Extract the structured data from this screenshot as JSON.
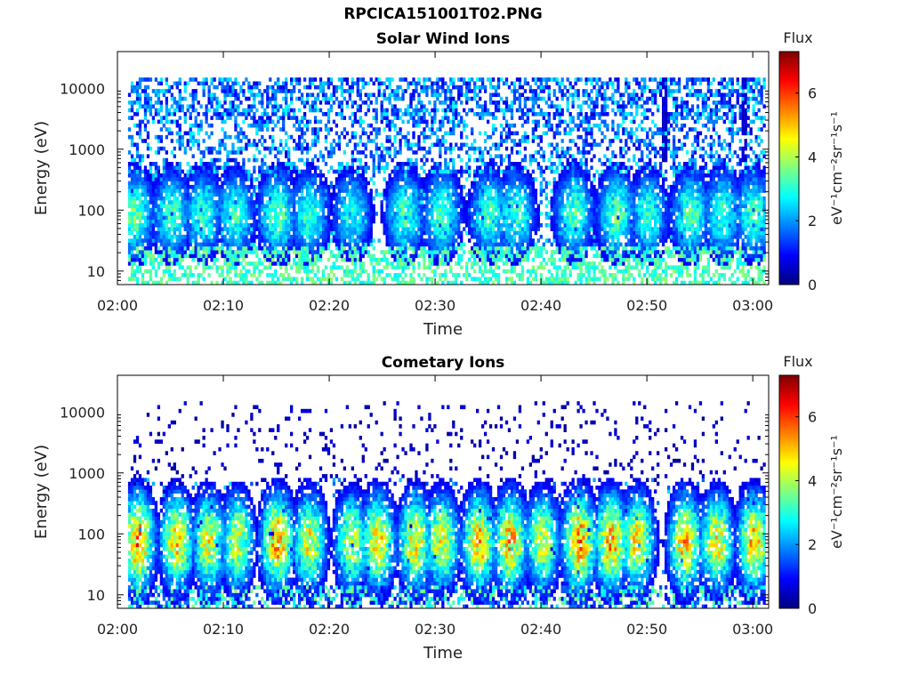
{
  "figure": {
    "title": "RPCICA151001T02.PNG"
  },
  "colors": {
    "jet_stops": [
      "#00007f",
      "#0000ff",
      "#007fff",
      "#00ffff",
      "#7fff7f",
      "#ffff00",
      "#ff7f00",
      "#ff0000",
      "#7f0000"
    ],
    "axis": "#000000",
    "background": "#ffffff"
  },
  "chart_data": [
    {
      "type": "heatmap",
      "title": "Solar Wind Ions",
      "xlabel": "Time",
      "ylabel": "Energy (eV)",
      "x_ticks": [
        "02:00",
        "02:10",
        "02:20",
        "02:30",
        "02:40",
        "02:50",
        "03:00"
      ],
      "x_tick_minutes": [
        0,
        10,
        20,
        30,
        40,
        50,
        60
      ],
      "xlim_minutes": [
        0,
        61.5
      ],
      "y_scale": "log",
      "y_ticks": [
        "10",
        "100",
        "1000",
        "10000"
      ],
      "y_tick_values": [
        10,
        100,
        1000,
        10000
      ],
      "ylim": [
        6,
        40000
      ],
      "colorbar": {
        "label": "Flux",
        "unit": "eV⁻¹cm⁻²sr⁻¹s⁻¹",
        "ticks": [
          "0",
          "2",
          "4",
          "6"
        ],
        "tick_values": [
          0,
          2,
          4,
          6
        ],
        "range": [
          0,
          7.3
        ]
      },
      "burst_centers_minutes": [
        1.5,
        5,
        8,
        11,
        15,
        18,
        22,
        27,
        30.5,
        35,
        37.5,
        43,
        47,
        50,
        54,
        57,
        60
      ],
      "burst_peak_flux": [
        3.6,
        3.4,
        3.2,
        3.3,
        3.6,
        3.3,
        3.0,
        3.4,
        3.5,
        3.4,
        3.3,
        3.5,
        3.6,
        3.2,
        3.5,
        3.3,
        3.4
      ],
      "background_flux": 1.4,
      "vertical_streak_minutes": [
        51.5,
        59
      ]
    },
    {
      "type": "heatmap",
      "title": "Cometary Ions",
      "xlabel": "Time",
      "ylabel": "Energy (eV)",
      "x_ticks": [
        "02:00",
        "02:10",
        "02:20",
        "02:30",
        "02:40",
        "02:50",
        "03:00"
      ],
      "x_tick_minutes": [
        0,
        10,
        20,
        30,
        40,
        50,
        60
      ],
      "xlim_minutes": [
        0,
        61.5
      ],
      "y_scale": "log",
      "y_ticks": [
        "10",
        "100",
        "1000",
        "10000"
      ],
      "y_tick_values": [
        10,
        100,
        1000,
        10000
      ],
      "ylim": [
        6,
        40000
      ],
      "colorbar": {
        "label": "Flux",
        "unit": "eV⁻¹cm⁻²sr⁻¹s⁻¹",
        "ticks": [
          "0",
          "2",
          "4",
          "6"
        ],
        "tick_values": [
          0,
          2,
          4,
          6
        ],
        "range": [
          0,
          7.3
        ]
      },
      "burst_centers_minutes": [
        1.8,
        5.5,
        8.5,
        11.2,
        15,
        18,
        22,
        24.5,
        28,
        30.5,
        34,
        37,
        40,
        43.5,
        46.5,
        49,
        53.5,
        56.5,
        60
      ],
      "burst_peak_flux": [
        6.0,
        5.3,
        5.0,
        4.8,
        5.8,
        5.0,
        4.8,
        5.3,
        5.3,
        5.0,
        5.6,
        5.6,
        4.8,
        6.0,
        5.7,
        5.2,
        5.5,
        5.2,
        5.5
      ],
      "background_flux": 0.5,
      "vertical_streak_minutes": []
    }
  ]
}
